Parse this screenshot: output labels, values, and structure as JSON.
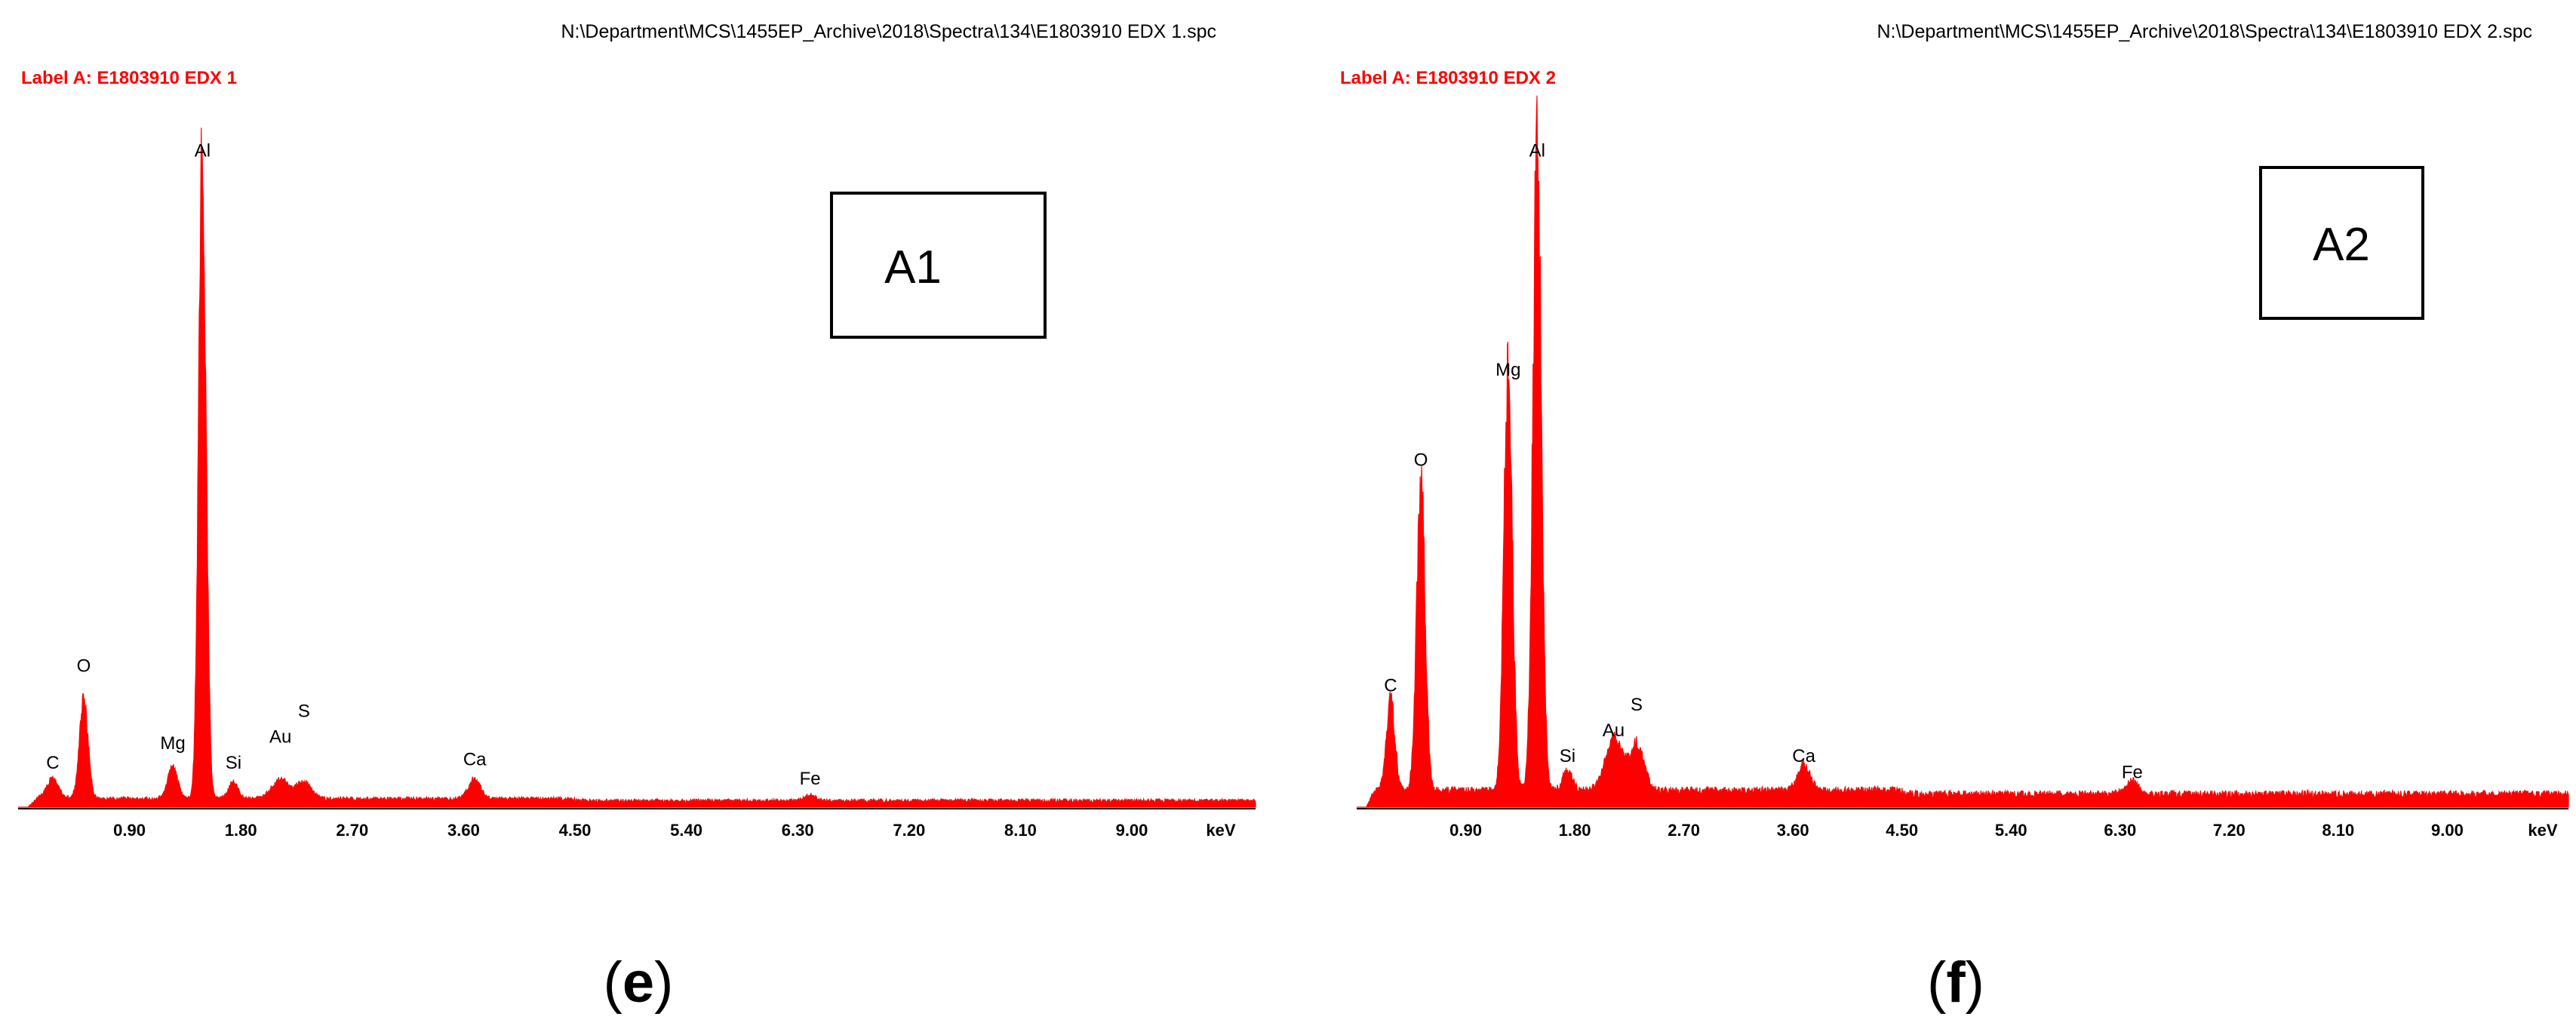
{
  "colors": {
    "spectrum": "#ff0000",
    "label": "#ff0000",
    "text": "#000000",
    "axis": "#000000"
  },
  "chart_data": [
    {
      "type": "area",
      "panel": "(e)",
      "file_path": "N:\\Department\\MCS\\1455EP_Archive\\2018\\Spectra\\134\\E1803910 EDX 1.spc",
      "label": "Label A: E1803910 EDX 1",
      "annotation_box": "A1",
      "xlabel": "keV",
      "ylabel": "",
      "xlim": [
        0,
        10.0
      ],
      "ylim": [
        0,
        100
      ],
      "x_ticks": [
        0.9,
        1.8,
        2.7,
        3.6,
        4.5,
        5.4,
        6.3,
        7.2,
        8.1,
        9.0
      ],
      "x_tick_labels": [
        "0.90",
        "1.80",
        "2.70",
        "3.60",
        "4.50",
        "5.40",
        "6.30",
        "7.20",
        "8.10",
        "9.00"
      ],
      "baseline": 1.0,
      "noise": 0.6,
      "peaks": [
        {
          "element": "C",
          "energy": 0.28,
          "height": 3,
          "width": 0.05
        },
        {
          "element": "O",
          "energy": 0.53,
          "height": 15,
          "width": 0.035
        },
        {
          "element": "Mg",
          "energy": 1.25,
          "height": 5,
          "width": 0.04
        },
        {
          "element": "Al",
          "energy": 1.49,
          "height": 100,
          "width": 0.03
        },
        {
          "element": "Si",
          "energy": 1.74,
          "height": 2.5,
          "width": 0.04
        },
        {
          "element": "Au",
          "energy": 2.12,
          "height": 3,
          "width": 0.07
        },
        {
          "element": "S",
          "energy": 2.31,
          "height": 2.5,
          "width": 0.06
        },
        {
          "element": "Ca",
          "energy": 3.69,
          "height": 3,
          "width": 0.05
        },
        {
          "element": "Fe",
          "energy": 6.4,
          "height": 0.8,
          "width": 0.05
        }
      ],
      "peak_labels": [
        {
          "text": "C",
          "energy": 0.28,
          "y": 6
        },
        {
          "text": "O",
          "energy": 0.53,
          "y": 21
        },
        {
          "text": "Mg",
          "energy": 1.25,
          "y": 9
        },
        {
          "text": "Al",
          "energy": 1.49,
          "y": 101
        },
        {
          "text": "Si",
          "energy": 1.74,
          "y": 6
        },
        {
          "text": "Au",
          "energy": 2.12,
          "y": 10
        },
        {
          "text": "S",
          "energy": 2.31,
          "y": 14
        },
        {
          "text": "Ca",
          "energy": 3.69,
          "y": 6.5
        },
        {
          "text": "Fe",
          "energy": 6.4,
          "y": 3.5
        }
      ]
    },
    {
      "type": "area",
      "panel": "(f)",
      "file_path": "N:\\Department\\MCS\\1455EP_Archive\\2018\\Spectra\\134\\E1803910 EDX 2.spc",
      "label": "Label A: E1803910 EDX 2",
      "annotation_box": "A2",
      "xlabel": "keV",
      "ylabel": "",
      "xlim": [
        0,
        10.0
      ],
      "ylim": [
        0,
        100
      ],
      "x_ticks": [
        0.9,
        1.8,
        2.7,
        3.6,
        4.5,
        5.4,
        6.3,
        7.2,
        8.1,
        9.0
      ],
      "x_tick_labels": [
        "0.90",
        "1.80",
        "2.70",
        "3.60",
        "4.50",
        "5.40",
        "6.30",
        "7.20",
        "8.10",
        "9.00"
      ],
      "baseline": 2.0,
      "noise": 1.2,
      "peaks": [
        {
          "element": "C",
          "energy": 0.28,
          "height": 14,
          "width": 0.035
        },
        {
          "element": "O",
          "energy": 0.53,
          "height": 47,
          "width": 0.035
        },
        {
          "element": "Mg",
          "energy": 1.25,
          "height": 64,
          "width": 0.035
        },
        {
          "element": "Al",
          "energy": 1.49,
          "height": 100,
          "width": 0.035
        },
        {
          "element": "Si",
          "energy": 1.74,
          "height": 3,
          "width": 0.04
        },
        {
          "element": "Au",
          "energy": 2.12,
          "height": 8,
          "width": 0.07
        },
        {
          "element": "S",
          "energy": 2.31,
          "height": 7,
          "width": 0.06
        },
        {
          "element": "Ca",
          "energy": 3.69,
          "height": 4,
          "width": 0.05
        },
        {
          "element": "Fe",
          "energy": 6.4,
          "height": 2,
          "width": 0.05
        }
      ],
      "peak_labels": [
        {
          "text": "C",
          "energy": 0.28,
          "y": 18
        },
        {
          "text": "O",
          "energy": 0.53,
          "y": 53
        },
        {
          "text": "Mg",
          "energy": 1.25,
          "y": 67
        },
        {
          "text": "Al",
          "energy": 1.49,
          "y": 101
        },
        {
          "text": "Si",
          "energy": 1.74,
          "y": 7
        },
        {
          "text": "Au",
          "energy": 2.12,
          "y": 11
        },
        {
          "text": "S",
          "energy": 2.31,
          "y": 15
        },
        {
          "text": "Ca",
          "energy": 3.69,
          "y": 7
        },
        {
          "text": "Fe",
          "energy": 6.4,
          "y": 4.5
        }
      ]
    }
  ]
}
